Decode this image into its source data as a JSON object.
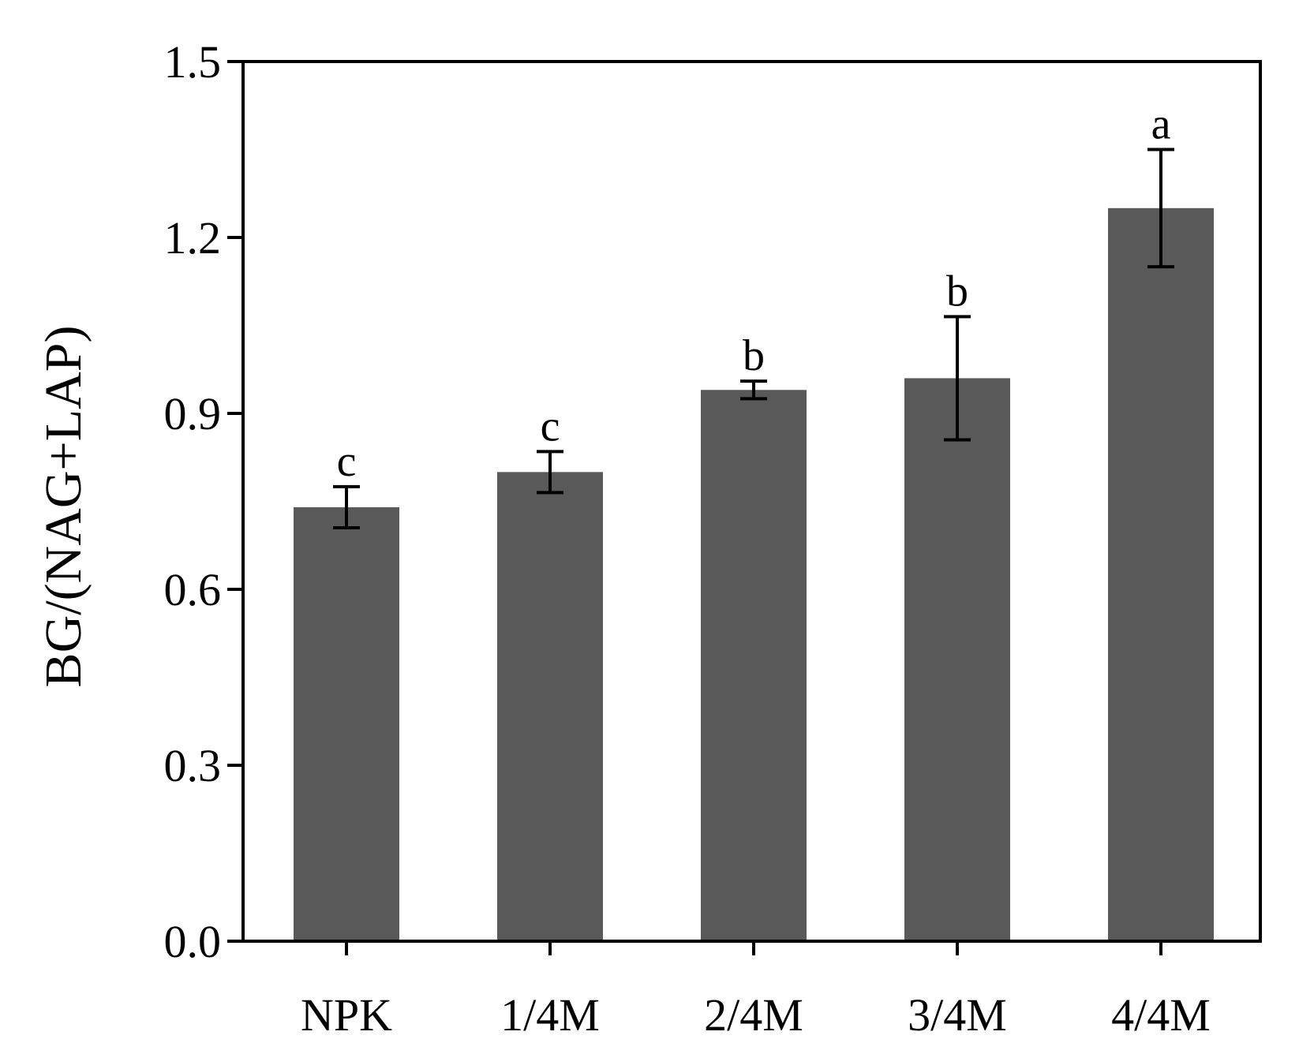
{
  "chart_data": {
    "type": "bar",
    "title": "",
    "xlabel": "",
    "ylabel": "BG/(NAG+LAP)",
    "categories": [
      "NPK",
      "1/4M",
      "2/4M",
      "3/4M",
      "4/4M"
    ],
    "values": [
      0.74,
      0.8,
      0.94,
      0.96,
      1.25
    ],
    "errors": [
      0.035,
      0.035,
      0.015,
      0.105,
      0.1
    ],
    "significance_labels": [
      "c",
      "c",
      "b",
      "b",
      "a"
    ],
    "ylim": [
      0,
      1.5
    ],
    "yticks": [
      0.0,
      0.3,
      0.6,
      0.9,
      1.2,
      1.5
    ],
    "ytick_labels": [
      "0.0",
      "0.3",
      "0.6",
      "0.9",
      "1.2",
      "1.5"
    ],
    "grid": false,
    "bar_color": "#595959"
  }
}
